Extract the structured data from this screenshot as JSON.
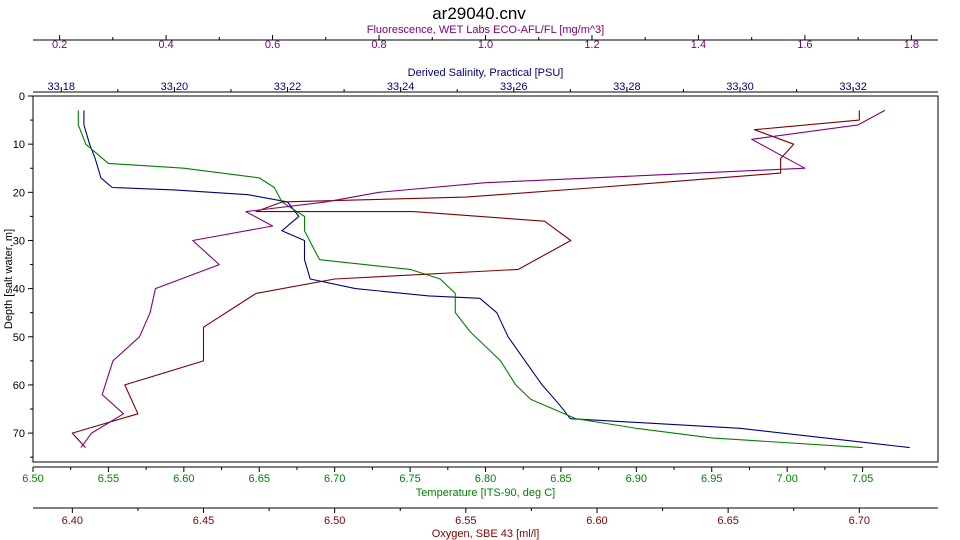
{
  "chart_data": {
    "type": "line",
    "title": "ar29040.cnv",
    "grid": false,
    "legend": "none",
    "y_axis": {
      "label": "Depth [salt water, m]",
      "range": [
        0,
        76
      ],
      "inverted": true,
      "ticks": [
        0,
        10,
        20,
        30,
        40,
        50,
        60,
        70
      ]
    },
    "x_axes": [
      {
        "id": "fluorescence",
        "position": "top-outer",
        "label": "Fluorescence, WET Labs ECO-AFL/FL [mg/m^3]",
        "color": "#800080",
        "range": [
          0.15,
          1.85
        ],
        "ticks": [
          0.2,
          0.4,
          0.6,
          0.8,
          1.0,
          1.2,
          1.4,
          1.6,
          1.8
        ],
        "tick_labels": [
          "0.2",
          "0.4",
          "0.6",
          "0.8",
          "1.0",
          "1.2",
          "1.4",
          "1.6",
          "1.8"
        ]
      },
      {
        "id": "salinity",
        "position": "top-inner",
        "label": "Derived Salinity, Practical [PSU]",
        "color": "#000080",
        "range": [
          33.175,
          33.335
        ],
        "ticks": [
          33.18,
          33.2,
          33.22,
          33.24,
          33.26,
          33.28,
          33.3,
          33.32
        ],
        "tick_labels": [
          "33.18",
          "33.20",
          "33.22",
          "33.24",
          "33.26",
          "33.28",
          "33.30",
          "33.32"
        ]
      },
      {
        "id": "temperature",
        "position": "bottom-inner",
        "label": "Temperature [ITS-90, deg C]",
        "color": "#008000",
        "range": [
          6.5,
          7.1
        ],
        "ticks": [
          6.5,
          6.55,
          6.6,
          6.65,
          6.7,
          6.75,
          6.8,
          6.85,
          6.9,
          6.95,
          7.0,
          7.05
        ],
        "tick_labels": [
          "6.50",
          "6.55",
          "6.60",
          "6.65",
          "6.70",
          "6.75",
          "6.80",
          "6.85",
          "6.90",
          "6.95",
          "7.00",
          "7.05"
        ]
      },
      {
        "id": "oxygen",
        "position": "bottom-outer",
        "label": "Oxygen, SBE 43 [ml/l]",
        "color": "#800000",
        "range": [
          6.385,
          6.73
        ],
        "ticks": [
          6.4,
          6.45,
          6.5,
          6.55,
          6.6,
          6.65,
          6.7
        ],
        "tick_labels": [
          "6.40",
          "6.45",
          "6.50",
          "6.55",
          "6.60",
          "6.65",
          "6.70"
        ]
      }
    ],
    "series": [
      {
        "axis": "salinity",
        "color": "#000080",
        "points": [
          [
            33.184,
            3
          ],
          [
            33.184,
            6
          ],
          [
            33.185,
            10
          ],
          [
            33.186,
            13
          ],
          [
            33.187,
            17
          ],
          [
            33.189,
            19
          ],
          [
            33.2,
            19.5
          ],
          [
            33.213,
            20.5
          ],
          [
            33.22,
            22
          ],
          [
            33.222,
            25
          ],
          [
            33.219,
            28
          ],
          [
            33.223,
            30
          ],
          [
            33.223,
            34
          ],
          [
            33.224,
            38
          ],
          [
            33.232,
            40
          ],
          [
            33.245,
            41.5
          ],
          [
            33.254,
            42
          ],
          [
            33.257,
            45
          ],
          [
            33.259,
            50
          ],
          [
            33.262,
            55
          ],
          [
            33.265,
            60
          ],
          [
            33.268,
            64
          ],
          [
            33.27,
            67
          ],
          [
            33.3,
            69
          ],
          [
            33.33,
            73
          ]
        ]
      },
      {
        "axis": "temperature",
        "color": "#008000",
        "points": [
          [
            6.53,
            3
          ],
          [
            6.53,
            6
          ],
          [
            6.535,
            10
          ],
          [
            6.55,
            14
          ],
          [
            6.6,
            15
          ],
          [
            6.65,
            17
          ],
          [
            6.66,
            19
          ],
          [
            6.665,
            22
          ],
          [
            6.67,
            23
          ],
          [
            6.68,
            25
          ],
          [
            6.68,
            28
          ],
          [
            6.685,
            31
          ],
          [
            6.69,
            34
          ],
          [
            6.72,
            35
          ],
          [
            6.75,
            36
          ],
          [
            6.77,
            38
          ],
          [
            6.78,
            41
          ],
          [
            6.78,
            45
          ],
          [
            6.79,
            49
          ],
          [
            6.81,
            55
          ],
          [
            6.82,
            60
          ],
          [
            6.83,
            63
          ],
          [
            6.86,
            67
          ],
          [
            6.88,
            68
          ],
          [
            6.9,
            69
          ],
          [
            6.95,
            71
          ],
          [
            7.05,
            73
          ]
        ]
      },
      {
        "axis": "oxygen",
        "color": "#800000",
        "points": [
          [
            6.7,
            3
          ],
          [
            6.7,
            5
          ],
          [
            6.66,
            7
          ],
          [
            6.675,
            10
          ],
          [
            6.67,
            13
          ],
          [
            6.67,
            16
          ],
          [
            6.6,
            19
          ],
          [
            6.55,
            21
          ],
          [
            6.48,
            22
          ],
          [
            6.47,
            24
          ],
          [
            6.53,
            24
          ],
          [
            6.58,
            26
          ],
          [
            6.59,
            30
          ],
          [
            6.57,
            36
          ],
          [
            6.5,
            38
          ],
          [
            6.47,
            41
          ],
          [
            6.45,
            48
          ],
          [
            6.45,
            55
          ],
          [
            6.42,
            60
          ],
          [
            6.425,
            66
          ],
          [
            6.4,
            70
          ],
          [
            6.405,
            73
          ]
        ]
      },
      {
        "axis": "fluorescence",
        "color": "#800080",
        "points": [
          [
            1.75,
            3
          ],
          [
            1.7,
            6
          ],
          [
            1.5,
            9
          ],
          [
            1.55,
            12
          ],
          [
            1.6,
            15
          ],
          [
            1.2,
            17
          ],
          [
            1.0,
            18
          ],
          [
            0.8,
            20
          ],
          [
            0.7,
            22
          ],
          [
            0.55,
            24
          ],
          [
            0.6,
            27
          ],
          [
            0.45,
            30
          ],
          [
            0.5,
            35
          ],
          [
            0.38,
            40
          ],
          [
            0.37,
            45
          ],
          [
            0.35,
            50
          ],
          [
            0.3,
            55
          ],
          [
            0.28,
            62
          ],
          [
            0.32,
            66
          ],
          [
            0.26,
            70
          ],
          [
            0.24,
            73
          ]
        ]
      }
    ]
  }
}
